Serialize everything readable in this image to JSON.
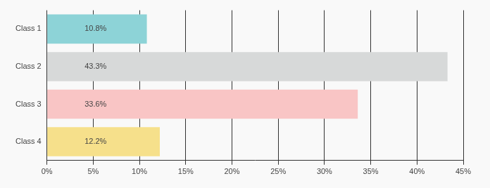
{
  "chart_data": {
    "type": "bar",
    "orientation": "horizontal",
    "categories": [
      "Class 1",
      "Class 2",
      "Class 3",
      "Class 4"
    ],
    "values": [
      10.8,
      43.3,
      33.6,
      12.2
    ],
    "value_labels": [
      "10.8%",
      "43.3%",
      "33.6%",
      "12.2%"
    ],
    "colors": [
      "#8dd3d7",
      "#d7d9d9",
      "#f9c5c5",
      "#f6e08b"
    ],
    "xlim": [
      0,
      45
    ],
    "xticks": [
      {
        "value": 0,
        "label": "0%"
      },
      {
        "value": 5,
        "label": "5%"
      },
      {
        "value": 10,
        "label": "10%"
      },
      {
        "value": 15,
        "label": "15%"
      },
      {
        "value": 20,
        "label": "20%"
      },
      {
        "value": 25,
        "label": "25%"
      },
      {
        "value": 30,
        "label": "30%"
      },
      {
        "value": 35,
        "label": "35%"
      },
      {
        "value": 40,
        "label": "40%"
      },
      {
        "value": 45,
        "label": "45%"
      }
    ],
    "grid": true,
    "data_labels": true
  }
}
